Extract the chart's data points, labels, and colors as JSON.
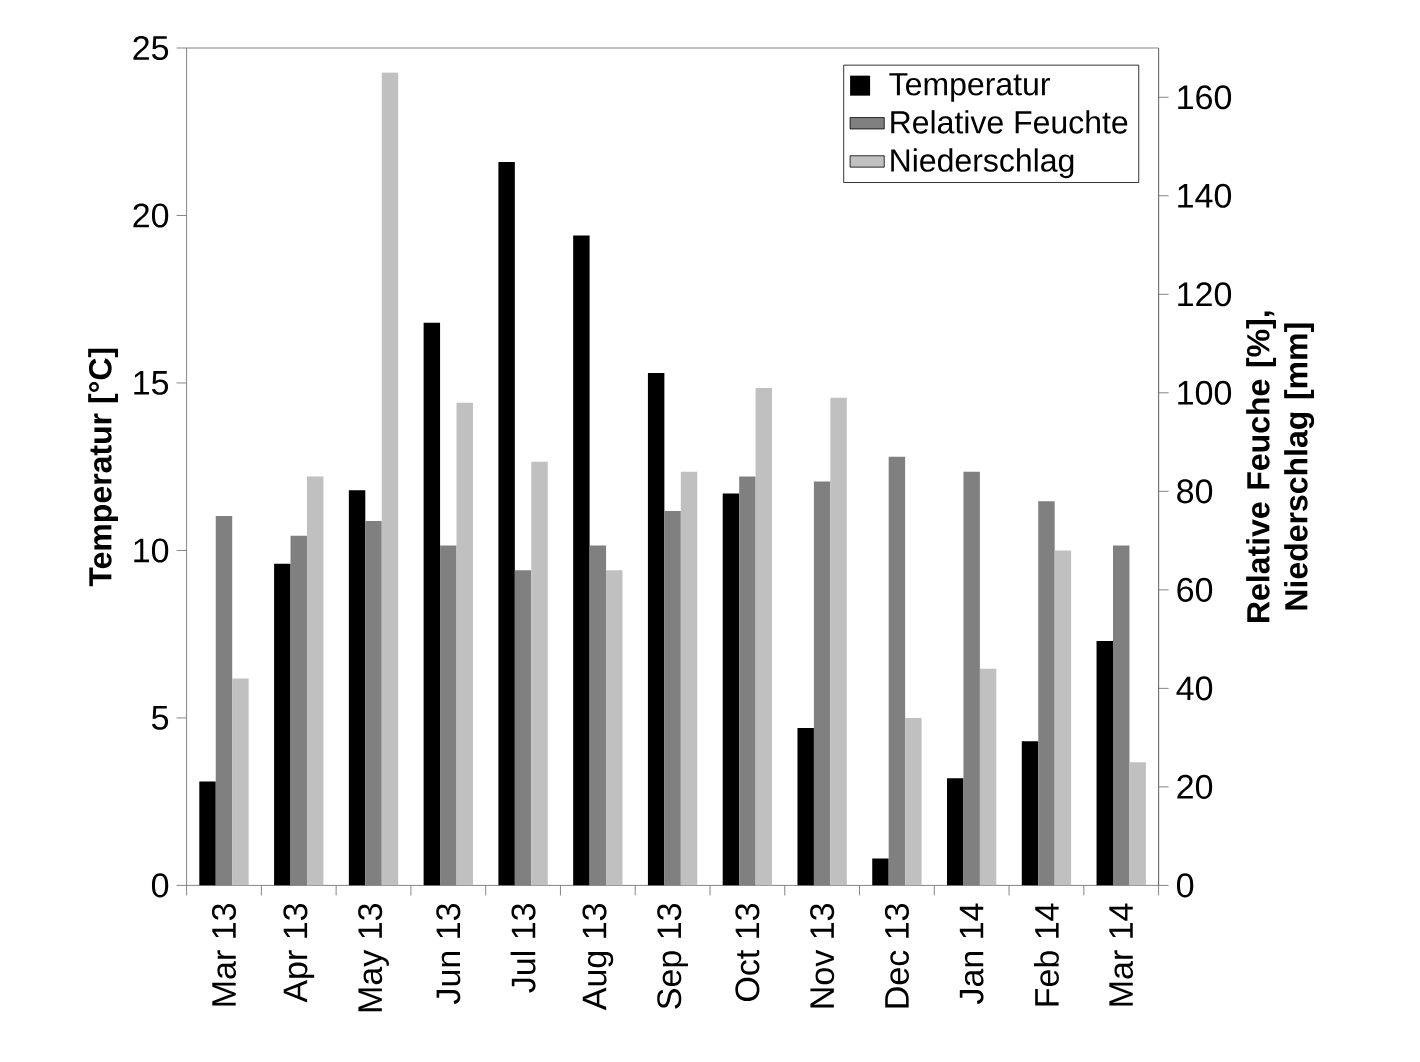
{
  "chart_data": {
    "type": "bar",
    "categories": [
      "Mar 13",
      "Apr 13",
      "May 13",
      "Jun 13",
      "Jul 13",
      "Aug 13",
      "Sep 13",
      "Oct 13",
      "Nov 13",
      "Dec 13",
      "Jan 14",
      "Feb 14",
      "Mar 14"
    ],
    "series": [
      {
        "name": "Temperatur",
        "color": "#000000",
        "values": [
          3.1,
          9.6,
          11.8,
          16.8,
          21.6,
          19.4,
          15.3,
          11.7,
          4.7,
          0.8,
          3.2,
          4.3,
          7.3
        ]
      },
      {
        "name": "Relative Feuchte",
        "color": "#808080",
        "axis": "y2",
        "values": [
          75,
          71,
          74,
          69,
          64,
          69,
          76,
          83,
          82,
          87,
          84,
          78,
          69
        ]
      },
      {
        "name": "Niederschlag",
        "color": "#c0c0c0",
        "axis": "y2",
        "values": [
          42,
          83,
          165,
          98,
          86,
          64,
          84,
          101,
          99,
          34,
          44,
          68,
          25
        ]
      }
    ],
    "ylabel": "Temperatur [°C]",
    "y2label": "Relative Feuche [%], Niederschlag [mm]",
    "ylim": [
      0,
      25
    ],
    "yticks": [
      0,
      5,
      10,
      15,
      20,
      25
    ],
    "y2lim": [
      0,
      170
    ],
    "y2ticks": [
      0,
      20,
      40,
      60,
      80,
      100,
      120,
      140,
      160
    ],
    "legend": "top right",
    "grid": false
  }
}
